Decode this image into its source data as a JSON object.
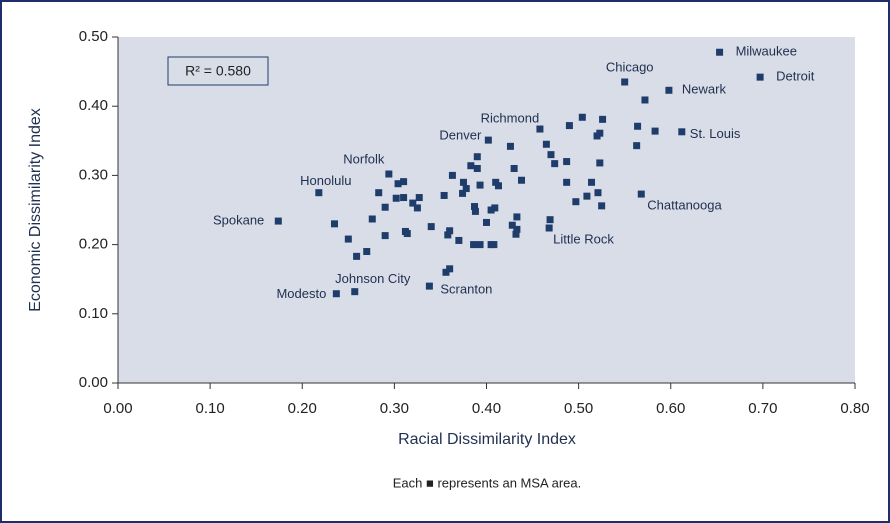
{
  "chart_data": {
    "type": "scatter",
    "xlabel": "Racial Dissimilarity Index",
    "ylabel": "Economic Dissimilarity Index",
    "annotation": "R² = 0.580",
    "note": "Each ■ represents an MSA area.",
    "color": "#1f3d6b",
    "background": "#d9dde8",
    "xlim": [
      0,
      0.8
    ],
    "ylim": [
      0,
      0.5
    ],
    "xticks": [
      {
        "value": 0,
        "label": "0.00"
      },
      {
        "value": 0.1,
        "label": "0.10"
      },
      {
        "value": 0.2,
        "label": "0.20"
      },
      {
        "value": 0.3,
        "label": "0.30"
      },
      {
        "value": 0.4,
        "label": "0.40"
      },
      {
        "value": 0.5,
        "label": "0.50"
      },
      {
        "value": 0.6,
        "label": "0.60"
      },
      {
        "value": 0.7,
        "label": "0.70"
      },
      {
        "value": 0.8,
        "label": "0.80"
      }
    ],
    "yticks": [
      {
        "value": 0,
        "label": "0.00"
      },
      {
        "value": 0.1,
        "label": "0.10"
      },
      {
        "value": 0.2,
        "label": "0.20"
      },
      {
        "value": 0.3,
        "label": "0.30"
      },
      {
        "value": 0.4,
        "label": "0.40"
      },
      {
        "value": 0.5,
        "label": "0.50"
      }
    ],
    "x": [
      0.653,
      0.697,
      0.55,
      0.598,
      0.612,
      0.568,
      0.468,
      0.458,
      0.402,
      0.294,
      0.218,
      0.174,
      0.237,
      0.257,
      0.338,
      0.235,
      0.25,
      0.259,
      0.27,
      0.276,
      0.283,
      0.29,
      0.29,
      0.302,
      0.304,
      0.31,
      0.31,
      0.312,
      0.314,
      0.32,
      0.325,
      0.327,
      0.34,
      0.354,
      0.356,
      0.36,
      0.358,
      0.36,
      0.363,
      0.37,
      0.375,
      0.374,
      0.378,
      0.383,
      0.39,
      0.39,
      0.386,
      0.393,
      0.387,
      0.388,
      0.393,
      0.4,
      0.405,
      0.405,
      0.408,
      0.409,
      0.41,
      0.413,
      0.426,
      0.428,
      0.43,
      0.432,
      0.433,
      0.433,
      0.438,
      0.465,
      0.47,
      0.474,
      0.469,
      0.487,
      0.487,
      0.49,
      0.497,
      0.504,
      0.509,
      0.514,
      0.52,
      0.521,
      0.523,
      0.523,
      0.525,
      0.526,
      0.563,
      0.564,
      0.572,
      0.583
    ],
    "y": [
      0.478,
      0.442,
      0.435,
      0.423,
      0.363,
      0.273,
      0.224,
      0.367,
      0.351,
      0.302,
      0.275,
      0.234,
      0.129,
      0.132,
      0.14,
      0.23,
      0.208,
      0.183,
      0.19,
      0.237,
      0.275,
      0.254,
      0.213,
      0.267,
      0.288,
      0.291,
      0.268,
      0.219,
      0.216,
      0.26,
      0.253,
      0.268,
      0.226,
      0.271,
      0.16,
      0.165,
      0.214,
      0.22,
      0.3,
      0.206,
      0.29,
      0.274,
      0.281,
      0.314,
      0.31,
      0.327,
      0.2,
      0.2,
      0.255,
      0.248,
      0.286,
      0.232,
      0.25,
      0.2,
      0.2,
      0.253,
      0.29,
      0.285,
      0.342,
      0.228,
      0.31,
      0.215,
      0.222,
      0.24,
      0.293,
      0.345,
      0.33,
      0.317,
      0.236,
      0.32,
      0.29,
      0.372,
      0.262,
      0.384,
      0.27,
      0.29,
      0.357,
      0.275,
      0.361,
      0.318,
      0.256,
      0.381,
      0.343,
      0.371,
      0.409,
      0.364
    ],
    "labels": [
      "Milwaukee",
      "Detroit",
      "Chicago",
      "Newark",
      "St. Louis",
      "Chattanooga",
      "Little Rock",
      "Richmond",
      "Denver",
      "Norfolk",
      "Honolulu",
      "Spokane",
      "Modesto",
      "Johnson City",
      "Scranton"
    ]
  }
}
